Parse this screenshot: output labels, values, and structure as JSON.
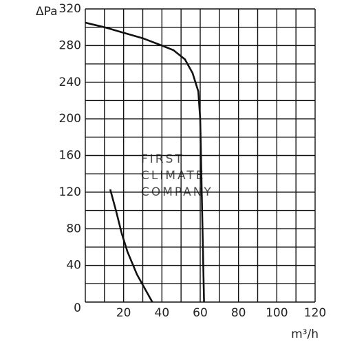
{
  "chart_data": {
    "type": "line",
    "y_label": "ΔPa",
    "x_label": "m³/h",
    "watermark": [
      "FIRST",
      "CLIMATE",
      "COMPANY"
    ],
    "xlim": [
      0,
      120
    ],
    "ylim": [
      0,
      320
    ],
    "xticks": [
      20,
      40,
      60,
      80,
      100,
      120
    ],
    "yticks": [
      0,
      40,
      80,
      120,
      160,
      200,
      240,
      280,
      320
    ],
    "xgrid": [
      0,
      10,
      20,
      30,
      40,
      50,
      60,
      70,
      80,
      90,
      100,
      110,
      120
    ],
    "ygrid": [
      0,
      20,
      40,
      60,
      80,
      100,
      120,
      140,
      160,
      180,
      200,
      220,
      240,
      260,
      280,
      300,
      320
    ],
    "grid": true,
    "series": [
      {
        "color": "#111",
        "x": [
          0,
          10,
          20,
          30,
          40,
          46,
          52,
          56,
          59,
          60,
          60.5,
          61,
          61.5,
          62
        ],
        "values": [
          305,
          300,
          294,
          288,
          280,
          275,
          265,
          250,
          230,
          200,
          150,
          100,
          50,
          0
        ]
      },
      {
        "color": "#111",
        "x": [
          13,
          16,
          19,
          22,
          27,
          31,
          35
        ],
        "values": [
          123,
          100,
          75,
          55,
          30,
          15,
          0
        ]
      }
    ]
  }
}
